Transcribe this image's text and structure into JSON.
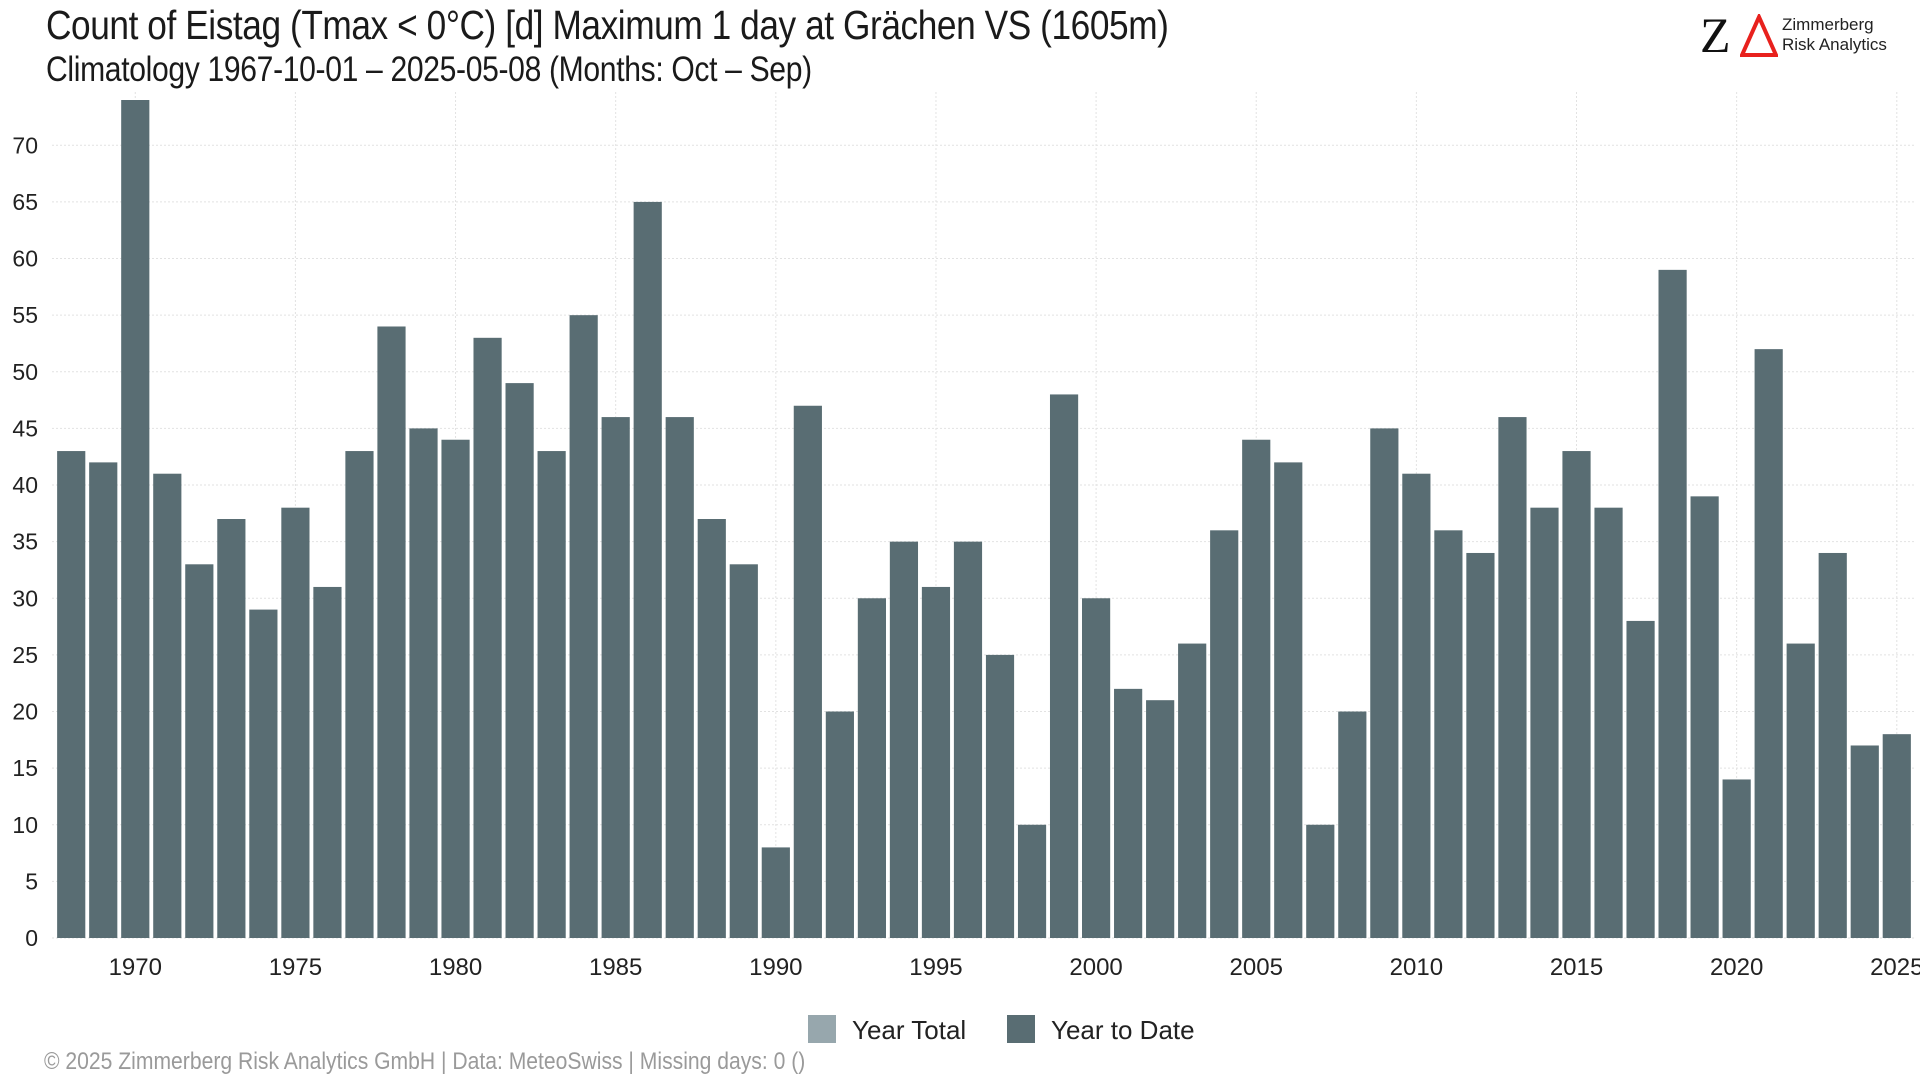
{
  "chart_data": {
    "type": "bar",
    "title": "Count of Eistag (Tmax < 0°C) [d] Maximum 1 day at Grächen  VS (1605m)",
    "subtitle": "Climatology 1967-10-01 – 2025-05-08 (Months: Oct – Sep)",
    "x": [
      1968,
      1969,
      1970,
      1971,
      1972,
      1973,
      1974,
      1975,
      1976,
      1977,
      1978,
      1979,
      1980,
      1981,
      1982,
      1983,
      1984,
      1985,
      1986,
      1987,
      1988,
      1989,
      1990,
      1991,
      1992,
      1993,
      1994,
      1995,
      1996,
      1997,
      1998,
      1999,
      2000,
      2001,
      2002,
      2003,
      2004,
      2005,
      2006,
      2007,
      2008,
      2009,
      2010,
      2011,
      2012,
      2013,
      2014,
      2015,
      2016,
      2017,
      2018,
      2019,
      2020,
      2021,
      2022,
      2023,
      2024,
      2025
    ],
    "series": [
      {
        "name": "Year to Date",
        "color": "#596d73",
        "values": [
          43,
          42,
          74,
          41,
          33,
          37,
          29,
          38,
          31,
          43,
          54,
          45,
          44,
          53,
          49,
          43,
          55,
          46,
          65,
          46,
          37,
          33,
          8,
          47,
          20,
          30,
          35,
          31,
          35,
          25,
          10,
          48,
          30,
          22,
          21,
          26,
          36,
          44,
          42,
          10,
          20,
          45,
          41,
          36,
          34,
          46,
          38,
          43,
          38,
          28,
          59,
          39,
          14,
          52,
          26,
          34,
          17,
          18
        ]
      }
    ],
    "legend": [
      {
        "label": "Year Total",
        "color": "#97a7ad"
      },
      {
        "label": "Year to Date",
        "color": "#596d73"
      }
    ],
    "legend_position": "bottom",
    "xticks": [
      1970,
      1975,
      1980,
      1985,
      1990,
      1995,
      2000,
      2005,
      2010,
      2015,
      2020,
      2025
    ],
    "yticks": [
      0,
      5,
      10,
      15,
      20,
      25,
      30,
      35,
      40,
      45,
      50,
      55,
      60,
      65,
      70
    ],
    "xlim": [
      1967.4,
      2025.6
    ],
    "ylim": [
      0,
      74
    ],
    "grid": true,
    "xlabel": "",
    "ylabel": ""
  },
  "logo": {
    "mark": "Z",
    "line1": "Zimmerberg",
    "line2": "Risk Analytics",
    "accent": "#e8211d"
  },
  "footer": "©  2025 Zimmerberg Risk Analytics GmbH | Data: MeteoSwiss | Missing days: 0 ()"
}
